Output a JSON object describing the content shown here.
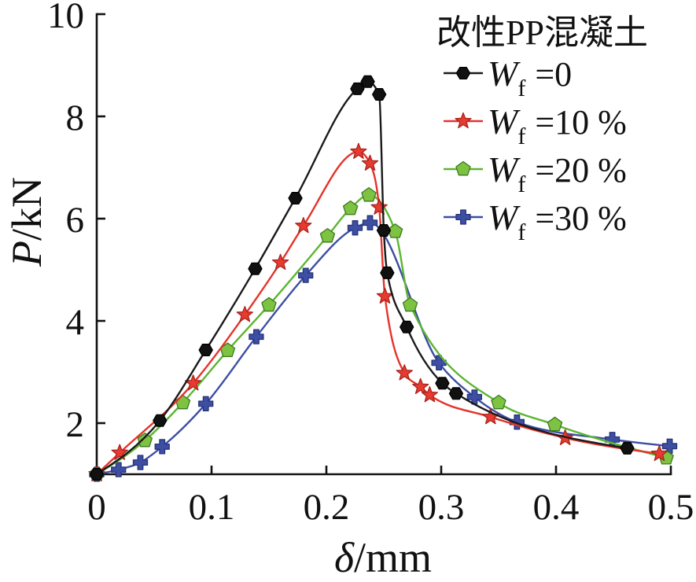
{
  "chart_data": {
    "type": "line",
    "xlabel": [
      "δ",
      "/mm"
    ],
    "ylabel": [
      "P",
      "/kN"
    ],
    "xlim": [
      0,
      0.5
    ],
    "ylim": [
      1,
      10
    ],
    "x_ticks": [
      "0",
      "0.1",
      "0.2",
      "0.3",
      "0.4",
      "0.5"
    ],
    "y_ticks": [
      "2",
      "4",
      "6",
      "8",
      "10"
    ],
    "grid": false,
    "legend": {
      "title": "改性PP混凝土",
      "placement": "top-right"
    },
    "series": [
      {
        "label": {
          "var": "W",
          "sub": "f",
          "value": "=0"
        },
        "color": "#1a1a1a",
        "marker": "hexagon",
        "marker_fill": "#111111",
        "marker_edge": "#000000",
        "x": [
          0,
          0.055,
          0.095,
          0.138,
          0.173,
          0.227,
          0.236,
          0.246,
          0.25,
          0.253,
          0.27,
          0.301,
          0.313,
          0.462
        ],
        "y": [
          1.0,
          2.05,
          3.43,
          5.02,
          6.4,
          8.54,
          8.68,
          8.43,
          5.77,
          4.94,
          3.88,
          2.78,
          2.58,
          1.51
        ]
      },
      {
        "label": {
          "var": "W",
          "sub": "f",
          "value": "=10 %"
        },
        "color": "#e5332a",
        "marker": "star",
        "marker_fill": "#e83a30",
        "marker_edge": "#a8231c",
        "x": [
          0,
          0.02,
          0.084,
          0.129,
          0.16,
          0.18,
          0.228,
          0.238,
          0.246,
          0.251,
          0.268,
          0.282,
          0.29,
          0.343,
          0.408,
          0.49
        ],
        "y": [
          1.0,
          1.42,
          2.78,
          4.12,
          5.14,
          5.86,
          7.31,
          7.08,
          6.22,
          4.48,
          2.98,
          2.71,
          2.55,
          2.12,
          1.71,
          1.4
        ]
      },
      {
        "label": {
          "var": "W",
          "sub": "f",
          "value": "=20 %"
        },
        "color": "#5cb531",
        "marker": "pentagon",
        "marker_fill": "#7ec242",
        "marker_edge": "#3a7a1f",
        "x": [
          0,
          0.042,
          0.075,
          0.114,
          0.15,
          0.201,
          0.221,
          0.237,
          0.26,
          0.273,
          0.35,
          0.399,
          0.496
        ],
        "y": [
          1.0,
          1.66,
          2.4,
          3.42,
          4.31,
          5.66,
          6.2,
          6.46,
          5.75,
          4.31,
          2.4,
          1.97,
          1.32
        ]
      },
      {
        "label": {
          "var": "W",
          "sub": "f",
          "value": "=30 %"
        },
        "color": "#3d4ea3",
        "marker": "plus",
        "marker_fill": "#3d4ea3",
        "marker_edge": "#27357a",
        "x": [
          0,
          0.019,
          0.038,
          0.057,
          0.095,
          0.139,
          0.182,
          0.225,
          0.238,
          0.298,
          0.329,
          0.366,
          0.449,
          0.499
        ],
        "y": [
          1.0,
          1.09,
          1.23,
          1.54,
          2.38,
          3.69,
          4.89,
          5.82,
          5.92,
          3.18,
          2.51,
          2.02,
          1.68,
          1.55
        ]
      }
    ]
  }
}
